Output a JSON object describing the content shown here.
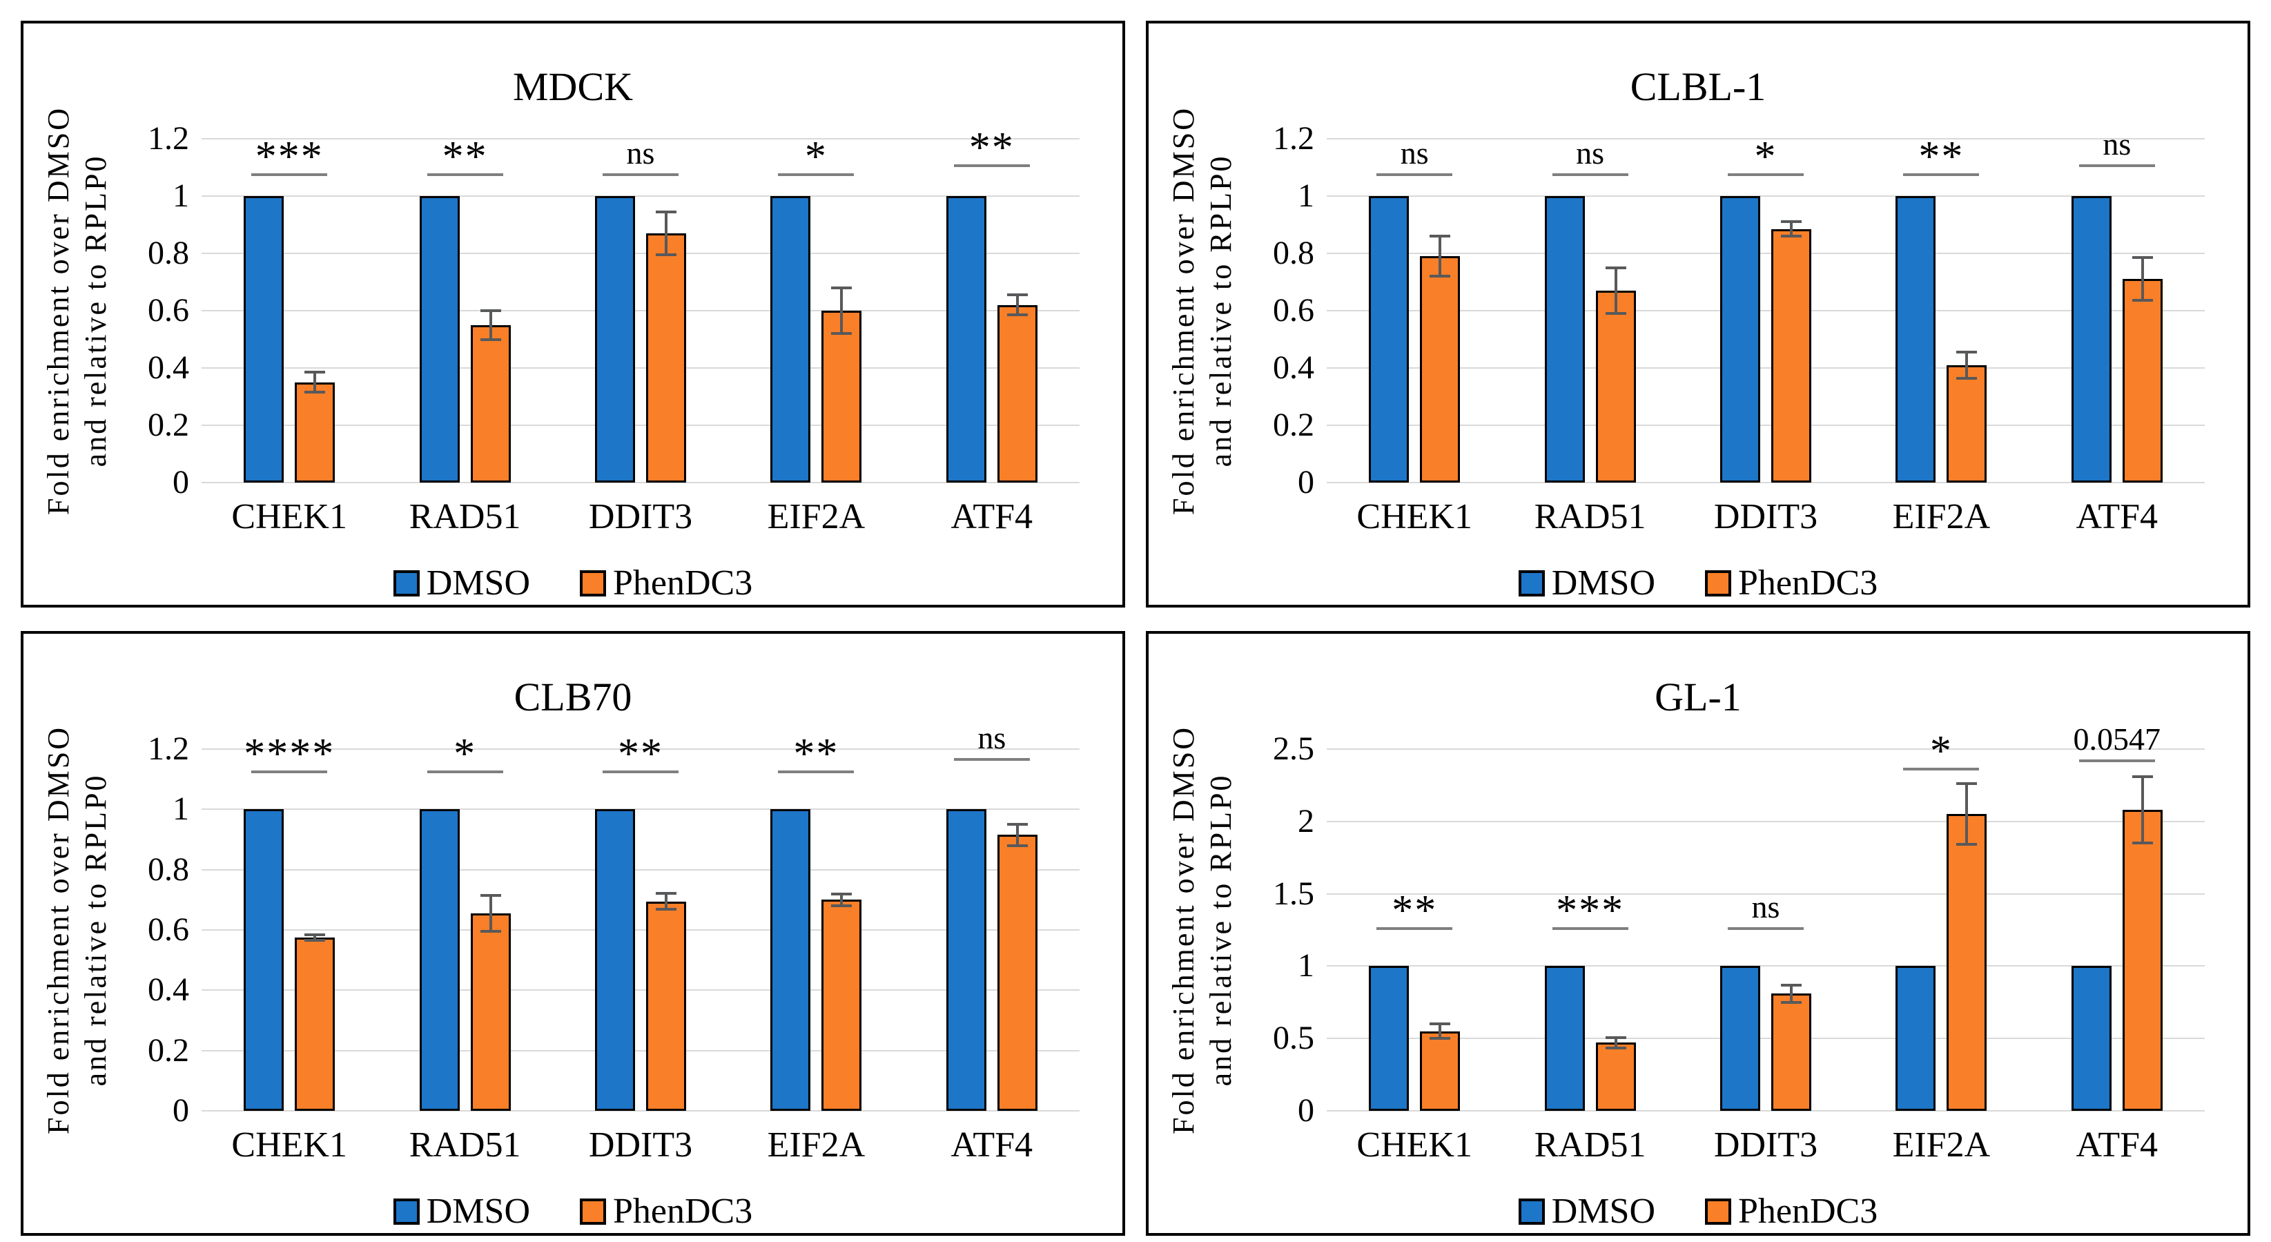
{
  "figure": {
    "background": "#FFFFFF",
    "panel_border_color": "#000000",
    "ylabel_line1": "Fold enrichment over DMSO",
    "ylabel_line2": "and relative to RPLP0"
  },
  "colors": {
    "dmso_fill": "#1D76C8",
    "phendc3_fill": "#F97F28",
    "bar_outline": "#000000",
    "error_bar": "#58595B",
    "significance_line": "#7F7F7F",
    "gridline": "#D9D9D9",
    "text": "#000000"
  },
  "chart_data": [
    {
      "type": "bar",
      "title": "MDCK",
      "ylabel": "Fold enrichment over DMSO and relative to RPLP0",
      "xlabel": "",
      "categories": [
        "CHEK1",
        "RAD51",
        "DDIT3",
        "EIF2A",
        "ATF4"
      ],
      "series": [
        {
          "name": "DMSO",
          "values": [
            1,
            1,
            1,
            1,
            1
          ]
        },
        {
          "name": "PhenDC3",
          "values": [
            0.35,
            0.55,
            0.87,
            0.6,
            0.62
          ],
          "errors": [
            0.035,
            0.05,
            0.075,
            0.08,
            0.035
          ]
        }
      ],
      "significance": {
        "labels": [
          "***",
          "**",
          "ns",
          "*",
          "**"
        ],
        "line_y": [
          1.08,
          1.08,
          1.08,
          1.08,
          1.11
        ]
      },
      "ylim": [
        0,
        1.2
      ],
      "yticks": [
        0,
        0.2,
        0.4,
        0.6,
        0.8,
        1,
        1.2
      ],
      "ytick_labels": [
        "0",
        "0.2",
        "0.4",
        "0.6",
        "0.8",
        "1",
        "1.2"
      ],
      "grid": true,
      "legend_position": "bottom"
    },
    {
      "type": "bar",
      "title": "CLBL-1",
      "ylabel": "Fold enrichment over DMSO and relative to RPLP0",
      "xlabel": "",
      "categories": [
        "CHEK1",
        "RAD51",
        "DDIT3",
        "EIF2A",
        "ATF4"
      ],
      "series": [
        {
          "name": "DMSO",
          "values": [
            1,
            1,
            1,
            1,
            1
          ]
        },
        {
          "name": "PhenDC3",
          "values": [
            0.79,
            0.67,
            0.885,
            0.41,
            0.71
          ],
          "errors": [
            0.07,
            0.08,
            0.025,
            0.045,
            0.075
          ]
        }
      ],
      "significance": {
        "labels": [
          "ns",
          "ns",
          "*",
          "**",
          "ns"
        ],
        "line_y": [
          1.08,
          1.08,
          1.08,
          1.08,
          1.11
        ]
      },
      "ylim": [
        0,
        1.2
      ],
      "yticks": [
        0,
        0.2,
        0.4,
        0.6,
        0.8,
        1,
        1.2
      ],
      "ytick_labels": [
        "0",
        "0.2",
        "0.4",
        "0.6",
        "0.8",
        "1",
        "1.2"
      ],
      "grid": true,
      "legend_position": "bottom"
    },
    {
      "type": "bar",
      "title": "CLB70",
      "ylabel": "Fold enrichment over DMSO and relative to RPLP0",
      "xlabel": "",
      "categories": [
        "CHEK1",
        "RAD51",
        "DDIT3",
        "EIF2A",
        "ATF4"
      ],
      "series": [
        {
          "name": "DMSO",
          "values": [
            1,
            1,
            1,
            1,
            1
          ]
        },
        {
          "name": "PhenDC3",
          "values": [
            0.575,
            0.655,
            0.695,
            0.7,
            0.915
          ],
          "errors": [
            0.01,
            0.06,
            0.027,
            0.02,
            0.035
          ]
        }
      ],
      "significance": {
        "labels": [
          "****",
          "*",
          "**",
          "**",
          "ns"
        ],
        "line_y": [
          1.13,
          1.13,
          1.13,
          1.13,
          1.17
        ]
      },
      "ylim": [
        0,
        1.2
      ],
      "yticks": [
        0,
        0.2,
        0.4,
        0.6,
        0.8,
        1,
        1.2
      ],
      "ytick_labels": [
        "0",
        "0.2",
        "0.4",
        "0.6",
        "0.8",
        "1",
        "1.2"
      ],
      "grid": true,
      "legend_position": "bottom"
    },
    {
      "type": "bar",
      "title": "GL-1",
      "ylabel": "Fold enrichment over DMSO and relative to RPLP0",
      "xlabel": "",
      "categories": [
        "CHEK1",
        "RAD51",
        "DDIT3",
        "EIF2A",
        "ATF4"
      ],
      "series": [
        {
          "name": "DMSO",
          "values": [
            1,
            1,
            1,
            1,
            1
          ]
        },
        {
          "name": "PhenDC3",
          "values": [
            0.55,
            0.47,
            0.81,
            2.05,
            2.08
          ],
          "errors": [
            0.05,
            0.035,
            0.06,
            0.21,
            0.23
          ]
        }
      ],
      "significance": {
        "labels": [
          "**",
          "***",
          "ns",
          "*",
          "0.0547"
        ],
        "line_y": [
          1.27,
          1.27,
          1.27,
          2.37,
          2.43
        ]
      },
      "ylim": [
        0,
        2.5
      ],
      "yticks": [
        0,
        0.5,
        1,
        1.5,
        2,
        2.5
      ],
      "ytick_labels": [
        "0",
        "0.5",
        "1",
        "1.5",
        "2",
        "2.5"
      ],
      "grid": true,
      "legend_position": "bottom"
    }
  ]
}
